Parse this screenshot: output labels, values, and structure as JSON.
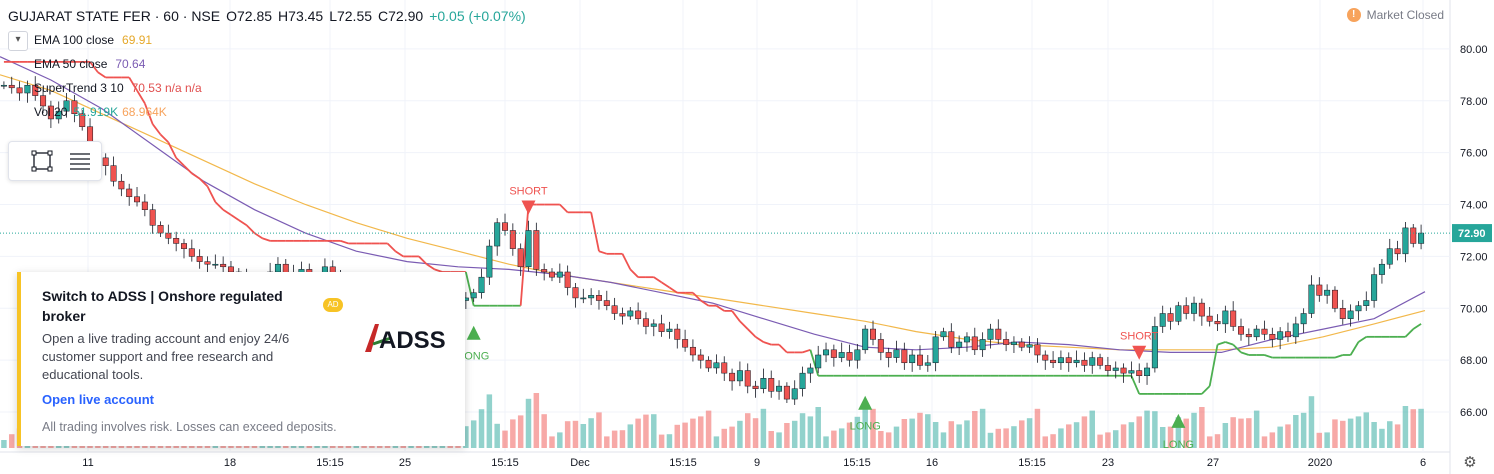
{
  "header": {
    "symbol": "GUJARAT STATE FER · 60 · NSE",
    "open": "O72.85",
    "high": "H73.45",
    "low": "L72.55",
    "close": "C72.90",
    "change": "+0.05 (+0.07%)"
  },
  "indicators": [
    {
      "label": "EMA 100 close",
      "value": "69.91",
      "color": "#f2b84b"
    },
    {
      "label": "EMA 50 close",
      "value": "70.64",
      "color": "#7b5cb3"
    },
    {
      "label": "SuperTrend 3 10",
      "value": "70.53 n/a n/a",
      "color": "#e04f4f"
    },
    {
      "label": "Vol 20",
      "value": "51.919K",
      "value2": "68.964K",
      "color": "#26a69a"
    }
  ],
  "status": {
    "market": "Market Closed",
    "icon": "exclamation-icon"
  },
  "price_marker": "72.90",
  "ad": {
    "headline": "Switch to ADSS | Onshore regulated broker",
    "badge": "AD",
    "body": "Open a live trading account and enjoy 24/6 customer support and free research and educational tools.",
    "link": "Open live account",
    "disclaimer": "All trading involves risk. Losses can exceed deposits.",
    "logo_text": "ADSS"
  },
  "chart_data": {
    "type": "candlestick",
    "y_axis": {
      "ticks": [
        66,
        68,
        70,
        72,
        74,
        76,
        78,
        80
      ],
      "tick_labels": [
        "66.00",
        "68.00",
        "70.00",
        "72.00",
        "74.00",
        "76.00",
        "78.00",
        "80.00"
      ],
      "range": [
        65.0,
        81.5
      ]
    },
    "x_ticks": [
      "11",
      "18",
      "15:15",
      "25",
      "15:15",
      "Dec",
      "15:15",
      "9",
      "15:15",
      "16",
      "15:15",
      "23",
      "27",
      "2020",
      "6"
    ],
    "last_price": 72.9,
    "closes": [
      78.6,
      78.5,
      78.3,
      78.6,
      78.2,
      77.8,
      77.3,
      77.6,
      78.0,
      77.5,
      77.0,
      76.2,
      75.8,
      75.5,
      74.9,
      74.6,
      74.3,
      74.1,
      73.8,
      73.2,
      72.9,
      72.7,
      72.5,
      72.3,
      72.0,
      71.8,
      71.7,
      71.7,
      71.6,
      71.4,
      71.2,
      71.0,
      70.7,
      70.9,
      71.4,
      71.7,
      71.2,
      71.3,
      71.5,
      71.1,
      71.2,
      71.6,
      71.3,
      71.0,
      70.9,
      71.1,
      70.8,
      70.6,
      70.4,
      70.3,
      70.5,
      70.4,
      70.5,
      70.3,
      70.4,
      70.4,
      70.5,
      70.4,
      70.3,
      70.4,
      70.6,
      71.2,
      72.4,
      73.3,
      73.0,
      72.3,
      71.6,
      73.0,
      71.5,
      71.4,
      71.2,
      71.4,
      70.8,
      70.4,
      70.4,
      70.5,
      70.3,
      70.1,
      69.8,
      69.7,
      69.9,
      69.6,
      69.3,
      69.4,
      69.1,
      69.2,
      68.8,
      68.5,
      68.2,
      68.0,
      67.7,
      67.9,
      67.5,
      67.2,
      67.6,
      67.0,
      66.9,
      67.3,
      66.8,
      67.0,
      66.5,
      66.9,
      67.5,
      67.7,
      68.2,
      68.4,
      68.1,
      68.3,
      68.0,
      68.4,
      69.2,
      68.8,
      68.3,
      68.1,
      68.4,
      67.9,
      68.2,
      67.8,
      67.9,
      68.9,
      69.1,
      68.5,
      68.7,
      68.9,
      68.4,
      68.8,
      69.2,
      68.8,
      68.6,
      68.7,
      68.5,
      68.6,
      68.2,
      68.0,
      67.9,
      68.1,
      67.9,
      68.0,
      67.8,
      68.1,
      67.8,
      67.6,
      67.7,
      67.5,
      67.6,
      67.4,
      67.7,
      69.3,
      69.8,
      69.5,
      70.1,
      69.8,
      70.2,
      69.7,
      69.5,
      69.4,
      69.9,
      69.3,
      69.0,
      68.9,
      69.2,
      69.0,
      68.8,
      69.1,
      68.9,
      69.4,
      69.8,
      70.9,
      70.5,
      70.7,
      70.0,
      69.6,
      69.9,
      70.1,
      70.3,
      71.3,
      71.7,
      72.3,
      72.1,
      73.1,
      72.5,
      72.9
    ],
    "ema100": [
      79.0,
      78.4,
      77.5,
      76.6,
      75.7,
      74.8,
      74.0,
      73.3,
      72.7,
      72.2,
      71.7,
      71.3,
      71.0,
      70.7,
      70.4,
      70.1,
      69.8,
      69.5,
      69.1,
      68.8,
      68.6,
      68.5,
      68.4,
      68.4,
      68.4,
      68.5,
      68.9,
      69.4,
      69.91
    ],
    "ema50": [
      79.7,
      78.8,
      77.7,
      76.3,
      74.9,
      73.8,
      72.9,
      72.2,
      71.8,
      71.6,
      71.5,
      71.3,
      71.0,
      70.6,
      70.2,
      69.6,
      69.0,
      68.5,
      68.4,
      68.5,
      68.7,
      68.6,
      68.4,
      68.3,
      68.3,
      68.8,
      69.2,
      69.6,
      70.64
    ],
    "supertrend": {
      "down_end_value": 72.0,
      "up_value": 70.53
    }
  },
  "annotations": [
    {
      "label": "LONG",
      "kind": "long"
    },
    {
      "label": "SHORT",
      "kind": "short"
    },
    {
      "label": "LONG",
      "kind": "long"
    },
    {
      "label": "SHORT",
      "kind": "short"
    },
    {
      "label": "LONG",
      "kind": "long"
    }
  ]
}
